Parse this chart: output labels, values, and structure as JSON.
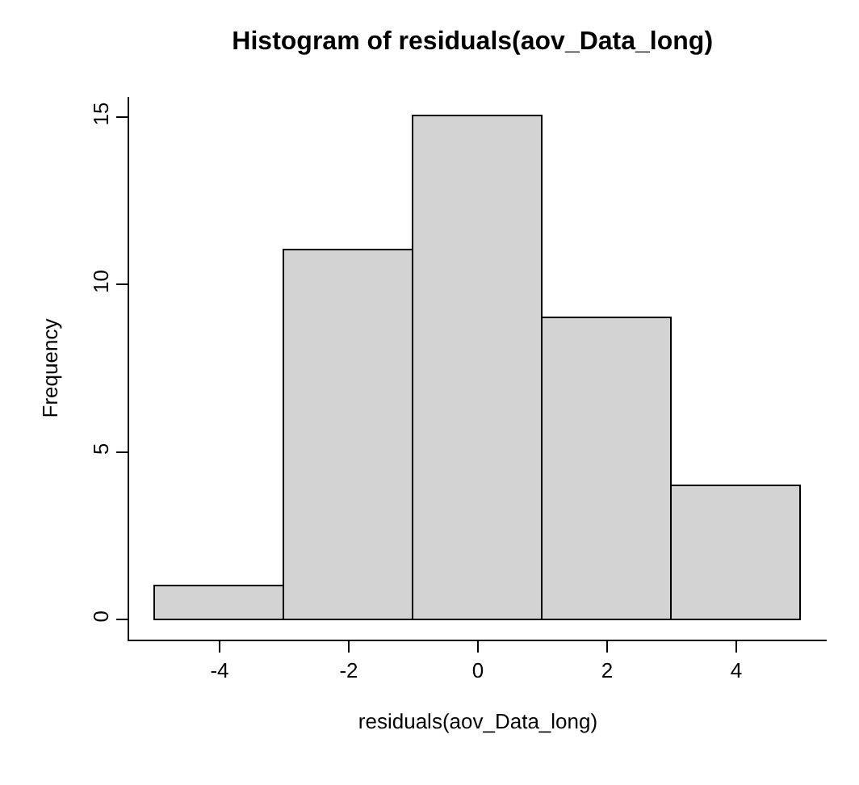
{
  "chart_data": {
    "type": "histogram",
    "title": "Histogram of residuals(aov_Data_long)",
    "xlabel": "residuals(aov_Data_long)",
    "ylabel": "Frequency",
    "bins": [
      -5,
      -3,
      -1,
      1,
      3,
      5
    ],
    "values": [
      1,
      11,
      15,
      9,
      4
    ],
    "color": "#d3d3d3",
    "xlim": [
      -5.4,
      5.4
    ],
    "xticks": [
      -4,
      -2,
      0,
      2,
      4
    ],
    "ylim": [
      -0.6,
      15.6
    ],
    "yticks": [
      0,
      5,
      10,
      15
    ],
    "grid": false
  }
}
